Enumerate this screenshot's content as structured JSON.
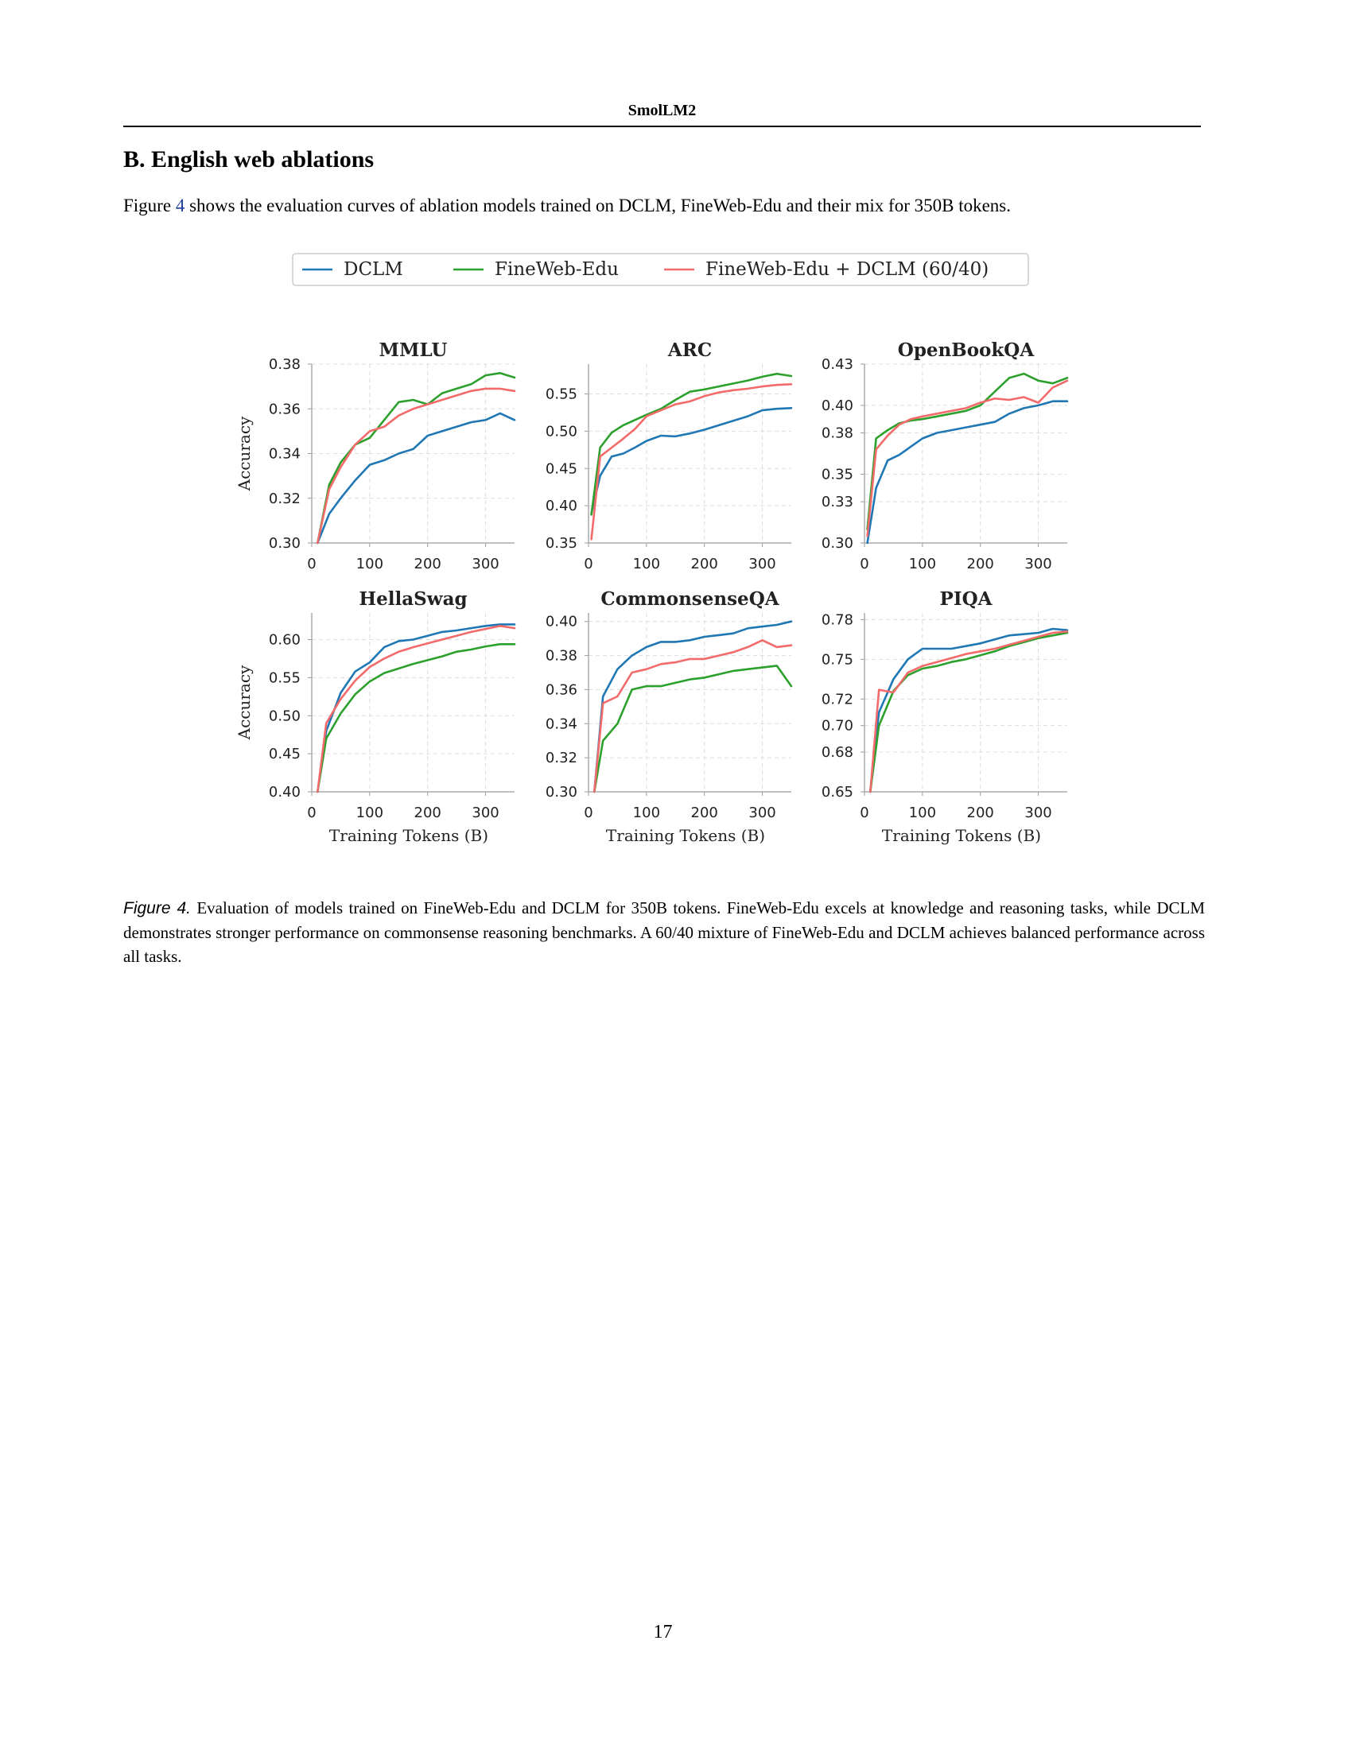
{
  "header": {
    "running_title": "SmolLM2"
  },
  "section": {
    "title": "B. English web ablations"
  },
  "intro": {
    "prefix": "Figure ",
    "ref": "4",
    "suffix": " shows the evaluation curves of ablation models trained on DCLM, FineWeb-Edu and their mix for 350B tokens."
  },
  "caption": {
    "label": "Figure 4.",
    "text": " Evaluation of models trained on FineWeb-Edu and DCLM for 350B tokens. FineWeb-Edu excels at knowledge and reasoning tasks, while DCLM demonstrates stronger performance on commonsense reasoning benchmarks. A 60/40 mixture of FineWeb-Edu and DCLM achieves balanced performance across all tasks."
  },
  "page_number": "17",
  "colors": {
    "DCLM": "#1f77b4",
    "FineWeb-Edu": "#2ca02c",
    "Mix": "#f26a6a"
  },
  "legend": [
    "DCLM",
    "FineWeb-Edu",
    "FineWeb-Edu + DCLM (60/40)"
  ],
  "chart_data": [
    {
      "type": "line",
      "title": "MMLU",
      "xlabel": "",
      "ylabel": "Accuracy",
      "xlim": [
        0,
        350
      ],
      "ylim": [
        0.3,
        0.38
      ],
      "xticks": [
        "0",
        "100",
        "200",
        "300"
      ],
      "yticks": [
        "0.30",
        "0.32",
        "0.34",
        "0.36",
        "0.38"
      ],
      "x": [
        10,
        30,
        50,
        75,
        100,
        125,
        150,
        175,
        200,
        225,
        250,
        275,
        300,
        325,
        350
      ],
      "series": [
        {
          "name": "DCLM",
          "values": [
            0.3,
            0.313,
            0.32,
            0.328,
            0.335,
            0.337,
            0.34,
            0.342,
            0.348,
            0.35,
            0.352,
            0.354,
            0.355,
            0.358,
            0.355
          ]
        },
        {
          "name": "FineWeb-Edu",
          "values": [
            0.3,
            0.326,
            0.336,
            0.344,
            0.347,
            0.355,
            0.363,
            0.364,
            0.362,
            0.367,
            0.369,
            0.371,
            0.375,
            0.376,
            0.374
          ]
        },
        {
          "name": "FineWeb-Edu + DCLM (60/40)",
          "values": [
            0.3,
            0.324,
            0.334,
            0.344,
            0.35,
            0.352,
            0.357,
            0.36,
            0.362,
            0.364,
            0.366,
            0.368,
            0.369,
            0.369,
            0.368
          ]
        }
      ]
    },
    {
      "type": "line",
      "title": "ARC",
      "xlabel": "",
      "ylabel": "",
      "xlim": [
        0,
        350
      ],
      "ylim": [
        0.35,
        0.59
      ],
      "xticks": [
        "0",
        "100",
        "200",
        "300"
      ],
      "yticks": [
        "0.35",
        "0.40",
        "0.45",
        "0.50",
        "0.55"
      ],
      "x": [
        5,
        20,
        40,
        60,
        80,
        100,
        125,
        150,
        175,
        200,
        225,
        250,
        275,
        300,
        325,
        350
      ],
      "series": [
        {
          "name": "DCLM",
          "values": [
            0.39,
            0.44,
            0.466,
            0.47,
            0.478,
            0.487,
            0.494,
            0.493,
            0.497,
            0.502,
            0.508,
            0.514,
            0.52,
            0.528,
            0.53,
            0.531
          ]
        },
        {
          "name": "FineWeb-Edu",
          "values": [
            0.388,
            0.478,
            0.498,
            0.508,
            0.515,
            0.522,
            0.53,
            0.542,
            0.553,
            0.556,
            0.56,
            0.564,
            0.568,
            0.573,
            0.577,
            0.574
          ]
        },
        {
          "name": "FineWeb-Edu + DCLM (60/40)",
          "values": [
            0.355,
            0.466,
            0.478,
            0.49,
            0.503,
            0.52,
            0.528,
            0.536,
            0.54,
            0.547,
            0.552,
            0.555,
            0.557,
            0.56,
            0.562,
            0.563
          ]
        }
      ]
    },
    {
      "type": "line",
      "title": "OpenBookQA",
      "xlabel": "",
      "ylabel": "",
      "xlim": [
        0,
        350
      ],
      "ylim": [
        0.3,
        0.43
      ],
      "xticks": [
        "0",
        "100",
        "200",
        "300"
      ],
      "yticks": [
        "0.30",
        "0.33",
        "0.35",
        "0.38",
        "0.40",
        "0.43"
      ],
      "x": [
        5,
        20,
        40,
        60,
        80,
        100,
        125,
        150,
        175,
        200,
        225,
        250,
        275,
        300,
        325,
        350
      ],
      "series": [
        {
          "name": "DCLM",
          "values": [
            0.3,
            0.34,
            0.36,
            0.364,
            0.37,
            0.376,
            0.38,
            0.382,
            0.384,
            0.386,
            0.388,
            0.394,
            0.398,
            0.4,
            0.403,
            0.403
          ]
        },
        {
          "name": "FineWeb-Edu",
          "values": [
            0.31,
            0.376,
            0.382,
            0.387,
            0.389,
            0.39,
            0.392,
            0.394,
            0.396,
            0.4,
            0.41,
            0.42,
            0.423,
            0.418,
            0.416,
            0.42
          ]
        },
        {
          "name": "FineWeb-Edu + DCLM (60/40)",
          "values": [
            0.305,
            0.368,
            0.378,
            0.386,
            0.39,
            0.392,
            0.394,
            0.396,
            0.398,
            0.402,
            0.405,
            0.404,
            0.406,
            0.402,
            0.413,
            0.418
          ]
        }
      ]
    },
    {
      "type": "line",
      "title": "HellaSwag",
      "xlabel": "Training Tokens (B)",
      "ylabel": "Accuracy",
      "xlim": [
        0,
        350
      ],
      "ylim": [
        0.4,
        0.635
      ],
      "xticks": [
        "0",
        "100",
        "200",
        "300"
      ],
      "yticks": [
        "0.40",
        "0.45",
        "0.50",
        "0.55",
        "0.60"
      ],
      "x": [
        10,
        25,
        50,
        75,
        100,
        125,
        150,
        175,
        200,
        225,
        250,
        275,
        300,
        325,
        350
      ],
      "series": [
        {
          "name": "DCLM",
          "values": [
            0.4,
            0.48,
            0.53,
            0.558,
            0.57,
            0.59,
            0.598,
            0.6,
            0.605,
            0.61,
            0.612,
            0.615,
            0.618,
            0.62,
            0.62
          ]
        },
        {
          "name": "FineWeb-Edu",
          "values": [
            0.4,
            0.47,
            0.503,
            0.528,
            0.545,
            0.556,
            0.562,
            0.568,
            0.573,
            0.578,
            0.584,
            0.587,
            0.591,
            0.594,
            0.594
          ]
        },
        {
          "name": "FineWeb-Edu + DCLM (60/40)",
          "values": [
            0.4,
            0.49,
            0.522,
            0.546,
            0.564,
            0.575,
            0.584,
            0.59,
            0.595,
            0.6,
            0.605,
            0.61,
            0.614,
            0.618,
            0.615
          ]
        }
      ]
    },
    {
      "type": "line",
      "title": "CommonsenseQA",
      "xlabel": "Training Tokens (B)",
      "ylabel": "",
      "xlim": [
        0,
        350
      ],
      "ylim": [
        0.3,
        0.405
      ],
      "xticks": [
        "0",
        "100",
        "200",
        "300"
      ],
      "yticks": [
        "0.30",
        "0.32",
        "0.34",
        "0.36",
        "0.38",
        "0.40"
      ],
      "x": [
        10,
        25,
        50,
        75,
        100,
        125,
        150,
        175,
        200,
        225,
        250,
        275,
        300,
        325,
        350
      ],
      "series": [
        {
          "name": "DCLM",
          "values": [
            0.3,
            0.356,
            0.372,
            0.38,
            0.385,
            0.388,
            0.388,
            0.389,
            0.391,
            0.392,
            0.393,
            0.396,
            0.397,
            0.398,
            0.4
          ]
        },
        {
          "name": "FineWeb-Edu",
          "values": [
            0.3,
            0.33,
            0.34,
            0.36,
            0.362,
            0.362,
            0.364,
            0.366,
            0.367,
            0.369,
            0.371,
            0.372,
            0.373,
            0.374,
            0.362
          ]
        },
        {
          "name": "FineWeb-Edu + DCLM (60/40)",
          "values": [
            0.3,
            0.352,
            0.356,
            0.37,
            0.372,
            0.375,
            0.376,
            0.378,
            0.378,
            0.38,
            0.382,
            0.385,
            0.389,
            0.385,
            0.386
          ]
        }
      ]
    },
    {
      "type": "line",
      "title": "PIQA",
      "xlabel": "Training Tokens (B)",
      "ylabel": "",
      "xlim": [
        0,
        350
      ],
      "ylim": [
        0.65,
        0.785
      ],
      "xticks": [
        "0",
        "100",
        "200",
        "300"
      ],
      "yticks": [
        "0.65",
        "0.68",
        "0.70",
        "0.72",
        "0.75",
        "0.78"
      ],
      "x": [
        10,
        25,
        50,
        75,
        100,
        125,
        150,
        175,
        200,
        225,
        250,
        275,
        300,
        325,
        350
      ],
      "series": [
        {
          "name": "DCLM",
          "values": [
            0.65,
            0.71,
            0.735,
            0.75,
            0.758,
            0.758,
            0.758,
            0.76,
            0.762,
            0.765,
            0.768,
            0.769,
            0.77,
            0.773,
            0.772
          ]
        },
        {
          "name": "FineWeb-Edu",
          "values": [
            0.65,
            0.7,
            0.726,
            0.738,
            0.743,
            0.745,
            0.748,
            0.75,
            0.753,
            0.756,
            0.76,
            0.763,
            0.766,
            0.768,
            0.77
          ]
        },
        {
          "name": "FineWeb-Edu + DCLM (60/40)",
          "values": [
            0.65,
            0.727,
            0.725,
            0.74,
            0.745,
            0.748,
            0.751,
            0.754,
            0.756,
            0.758,
            0.761,
            0.764,
            0.767,
            0.77,
            0.771
          ]
        }
      ]
    }
  ]
}
